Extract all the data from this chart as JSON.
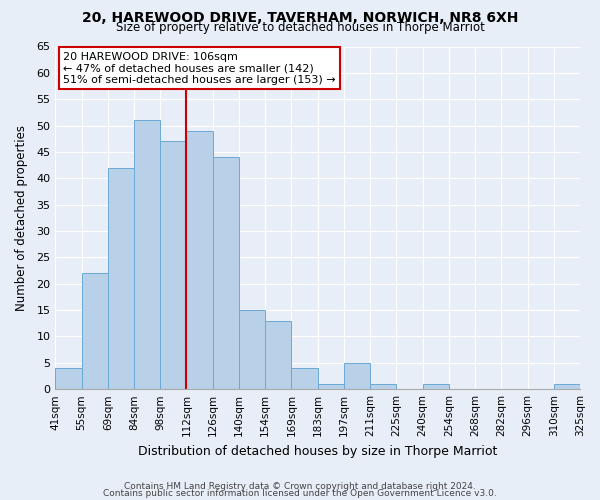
{
  "title1": "20, HAREWOOD DRIVE, TAVERHAM, NORWICH, NR8 6XH",
  "title2": "Size of property relative to detached houses in Thorpe Marriot",
  "xlabel": "Distribution of detached houses by size in Thorpe Marriot",
  "ylabel": "Number of detached properties",
  "tick_labels": [
    "41sqm",
    "55sqm",
    "69sqm",
    "84sqm",
    "98sqm",
    "112sqm",
    "126sqm",
    "140sqm",
    "154sqm",
    "169sqm",
    "183sqm",
    "197sqm",
    "211sqm",
    "225sqm",
    "240sqm",
    "254sqm",
    "268sqm",
    "282sqm",
    "296sqm",
    "310sqm",
    "325sqm"
  ],
  "bar_values": [
    4,
    22,
    42,
    51,
    47,
    49,
    44,
    15,
    13,
    4,
    1,
    5,
    1,
    0,
    1,
    0,
    0,
    0,
    0,
    1
  ],
  "bar_color": "#b8d0e8",
  "bar_edge_color": "#6aaad4",
  "vline_color": "#cc0000",
  "vline_pos": 4.5,
  "annotation_title": "20 HAREWOOD DRIVE: 106sqm",
  "annotation_line1": "← 47% of detached houses are smaller (142)",
  "annotation_line2": "51% of semi-detached houses are larger (153) →",
  "annotation_box_facecolor": "#ffffff",
  "annotation_box_edgecolor": "#cc0000",
  "ylim": [
    0,
    65
  ],
  "yticks": [
    0,
    5,
    10,
    15,
    20,
    25,
    30,
    35,
    40,
    45,
    50,
    55,
    60,
    65
  ],
  "footer1": "Contains HM Land Registry data © Crown copyright and database right 2024.",
  "footer2": "Contains public sector information licensed under the Open Government Licence v3.0.",
  "bg_color": "#e8eef7",
  "grid_color": "#ffffff",
  "title1_fontsize": 10,
  "title2_fontsize": 8.5,
  "ylabel_fontsize": 8.5,
  "xlabel_fontsize": 9,
  "tick_fontsize": 7.5,
  "footer_fontsize": 6.5
}
